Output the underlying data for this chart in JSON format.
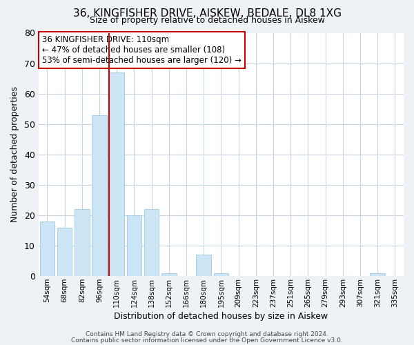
{
  "title": "36, KINGFISHER DRIVE, AISKEW, BEDALE, DL8 1XG",
  "subtitle": "Size of property relative to detached houses in Aiskew",
  "xlabel": "Distribution of detached houses by size in Aiskew",
  "ylabel": "Number of detached properties",
  "bar_labels": [
    "54sqm",
    "68sqm",
    "82sqm",
    "96sqm",
    "110sqm",
    "124sqm",
    "138sqm",
    "152sqm",
    "166sqm",
    "180sqm",
    "195sqm",
    "209sqm",
    "223sqm",
    "237sqm",
    "251sqm",
    "265sqm",
    "279sqm",
    "293sqm",
    "307sqm",
    "321sqm",
    "335sqm"
  ],
  "bar_values": [
    18,
    16,
    22,
    53,
    67,
    20,
    22,
    1,
    0,
    7,
    1,
    0,
    0,
    0,
    0,
    0,
    0,
    0,
    0,
    1,
    0
  ],
  "bar_color": "#cce5f5",
  "bar_edge_color": "#a8cfe8",
  "vline_index": 4,
  "vline_color": "#cc0000",
  "ylim": [
    0,
    80
  ],
  "yticks": [
    0,
    10,
    20,
    30,
    40,
    50,
    60,
    70,
    80
  ],
  "annotation_line1": "36 KINGFISHER DRIVE: 110sqm",
  "annotation_line2": "← 47% of detached houses are smaller (108)",
  "annotation_line3": "53% of semi-detached houses are larger (120) →",
  "footer_line1": "Contains HM Land Registry data © Crown copyright and database right 2024.",
  "footer_line2": "Contains public sector information licensed under the Open Government Licence v3.0.",
  "background_color": "#eef2f7",
  "plot_bg_color": "#ffffff",
  "grid_color": "#c8d4e0"
}
